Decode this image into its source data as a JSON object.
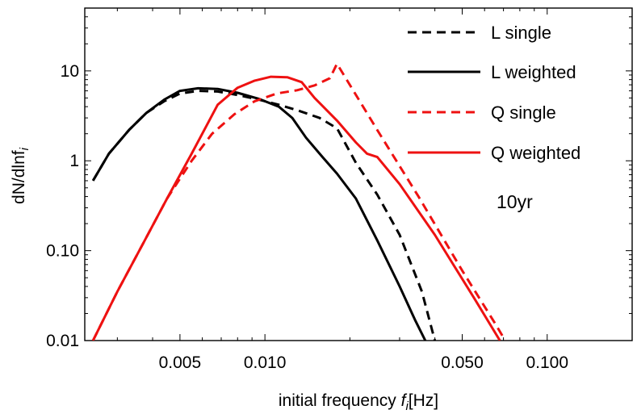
{
  "chart_data": {
    "type": "line",
    "xlabel": "initial frequency",
    "xlabel_symbol": "f",
    "xlabel_sub": "i",
    "xlabel_unit": "[Hz]",
    "ylabel": "dN/dlnf",
    "ylabel_sub": "i",
    "x_scale": "log",
    "y_scale": "log",
    "xlim": [
      0.0023,
      0.2
    ],
    "ylim": [
      0.01,
      50
    ],
    "x_ticks": [
      {
        "value": 0.005,
        "label": "0.005"
      },
      {
        "value": 0.01,
        "label": "0.010"
      },
      {
        "value": 0.05,
        "label": "0.050"
      },
      {
        "value": 0.1,
        "label": "0.100"
      }
    ],
    "y_ticks": [
      {
        "value": 0.01,
        "label": "0.01"
      },
      {
        "value": 0.1,
        "label": "0.10"
      },
      {
        "value": 1,
        "label": "1"
      },
      {
        "value": 10,
        "label": "10"
      }
    ],
    "annotation": "10yr",
    "legend_position": "top-right",
    "grid": false,
    "series": [
      {
        "name": "L single",
        "color": "#000000",
        "dash": "dashed",
        "x": [
          0.00246,
          0.0028,
          0.0033,
          0.0038,
          0.0044,
          0.005,
          0.0058,
          0.0068,
          0.008,
          0.0095,
          0.0112,
          0.0132,
          0.0156,
          0.018,
          0.021,
          0.025,
          0.03,
          0.036,
          0.04
        ],
        "y": [
          0.6,
          1.2,
          2.2,
          3.4,
          4.6,
          5.6,
          6.0,
          5.9,
          5.4,
          4.8,
          4.2,
          3.6,
          3.0,
          2.3,
          0.95,
          0.42,
          0.15,
          0.035,
          0.01
        ]
      },
      {
        "name": "L weighted",
        "color": "#000000",
        "dash": "solid",
        "x": [
          0.00246,
          0.0028,
          0.0033,
          0.0038,
          0.0044,
          0.005,
          0.0058,
          0.0068,
          0.008,
          0.0095,
          0.0112,
          0.0125,
          0.014,
          0.016,
          0.018,
          0.021,
          0.025,
          0.03,
          0.034,
          0.037
        ],
        "y": [
          0.6,
          1.2,
          2.2,
          3.4,
          4.8,
          6.0,
          6.4,
          6.3,
          5.7,
          4.9,
          4.0,
          3.0,
          1.8,
          1.1,
          0.72,
          0.38,
          0.13,
          0.04,
          0.017,
          0.01
        ]
      },
      {
        "name": "Q single",
        "color": "#ee1111",
        "dash": "dashed",
        "x": [
          0.00246,
          0.003,
          0.0037,
          0.0045,
          0.0055,
          0.0065,
          0.0078,
          0.0092,
          0.011,
          0.013,
          0.015,
          0.017,
          0.018,
          0.025,
          0.035,
          0.05,
          0.065,
          0.071
        ],
        "y": [
          0.01,
          0.035,
          0.12,
          0.38,
          1.0,
          2.0,
          3.3,
          4.6,
          5.6,
          6.1,
          6.9,
          8.3,
          12.0,
          2.2,
          0.4,
          0.06,
          0.016,
          0.01
        ]
      },
      {
        "name": "Q weighted",
        "color": "#ee1111",
        "dash": "solid",
        "x": [
          0.00246,
          0.003,
          0.0037,
          0.0045,
          0.0055,
          0.0068,
          0.008,
          0.0092,
          0.0105,
          0.012,
          0.0135,
          0.015,
          0.018,
          0.021,
          0.023,
          0.025,
          0.03,
          0.04,
          0.055,
          0.068
        ],
        "y": [
          0.01,
          0.035,
          0.12,
          0.38,
          1.2,
          4.2,
          6.5,
          7.8,
          8.6,
          8.5,
          7.5,
          5.0,
          2.8,
          1.6,
          1.2,
          1.1,
          0.55,
          0.15,
          0.03,
          0.01
        ]
      }
    ]
  }
}
